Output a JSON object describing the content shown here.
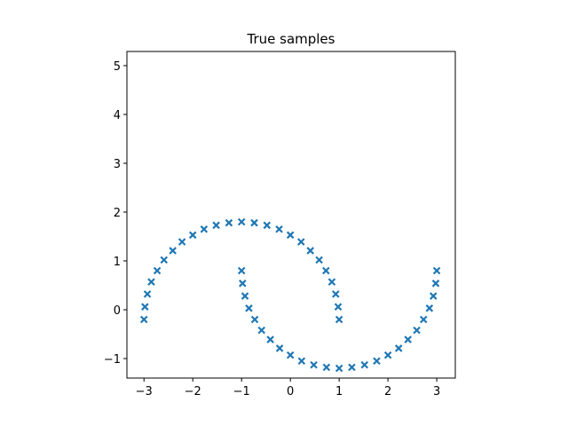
{
  "chart_data": {
    "type": "scatter",
    "title": "True samples",
    "color": "#1f77b4",
    "x": [
      1,
      0.98,
      0.93,
      0.85,
      0.73,
      0.59,
      0.41,
      0.22,
      0,
      -0.23,
      -0.48,
      -0.74,
      -1,
      -1.26,
      -1.52,
      -1.77,
      -2,
      -2.22,
      -2.41,
      -2.59,
      -2.73,
      -2.85,
      -2.93,
      -2.98,
      -3,
      -1,
      -0.98,
      -0.93,
      -0.85,
      -0.73,
      -0.59,
      -0.41,
      -0.22,
      0,
      0.23,
      0.48,
      0.74,
      1,
      1.26,
      1.52,
      1.77,
      2,
      2.22,
      2.41,
      2.59,
      2.73,
      2.85,
      2.93,
      2.98,
      3
    ],
    "values": [
      -0.2,
      0.06,
      0.32,
      0.57,
      0.8,
      1.02,
      1.21,
      1.39,
      1.53,
      1.65,
      1.73,
      1.78,
      1.8,
      1.78,
      1.73,
      1.65,
      1.53,
      1.39,
      1.21,
      1.02,
      0.8,
      0.57,
      0.32,
      0.06,
      -0.2,
      0.8,
      0.54,
      0.28,
      0.03,
      -0.2,
      -0.42,
      -0.61,
      -0.79,
      -0.93,
      -1.05,
      -1.13,
      -1.18,
      -1.2,
      -1.18,
      -1.13,
      -1.05,
      -0.93,
      -0.79,
      -0.61,
      -0.42,
      -0.2,
      0.03,
      0.28,
      0.54,
      0.8
    ],
    "xlim": [
      -3.35,
      3.38
    ],
    "ylim": [
      -1.4,
      5.29
    ],
    "xticks": [
      {
        "value": -3,
        "label": "−3"
      },
      {
        "value": -2,
        "label": "−2"
      },
      {
        "value": -1,
        "label": "−1"
      },
      0,
      1,
      2,
      3
    ],
    "yticks": [
      {
        "value": -1,
        "label": "−1"
      },
      0,
      1,
      2,
      3,
      4,
      5
    ]
  }
}
